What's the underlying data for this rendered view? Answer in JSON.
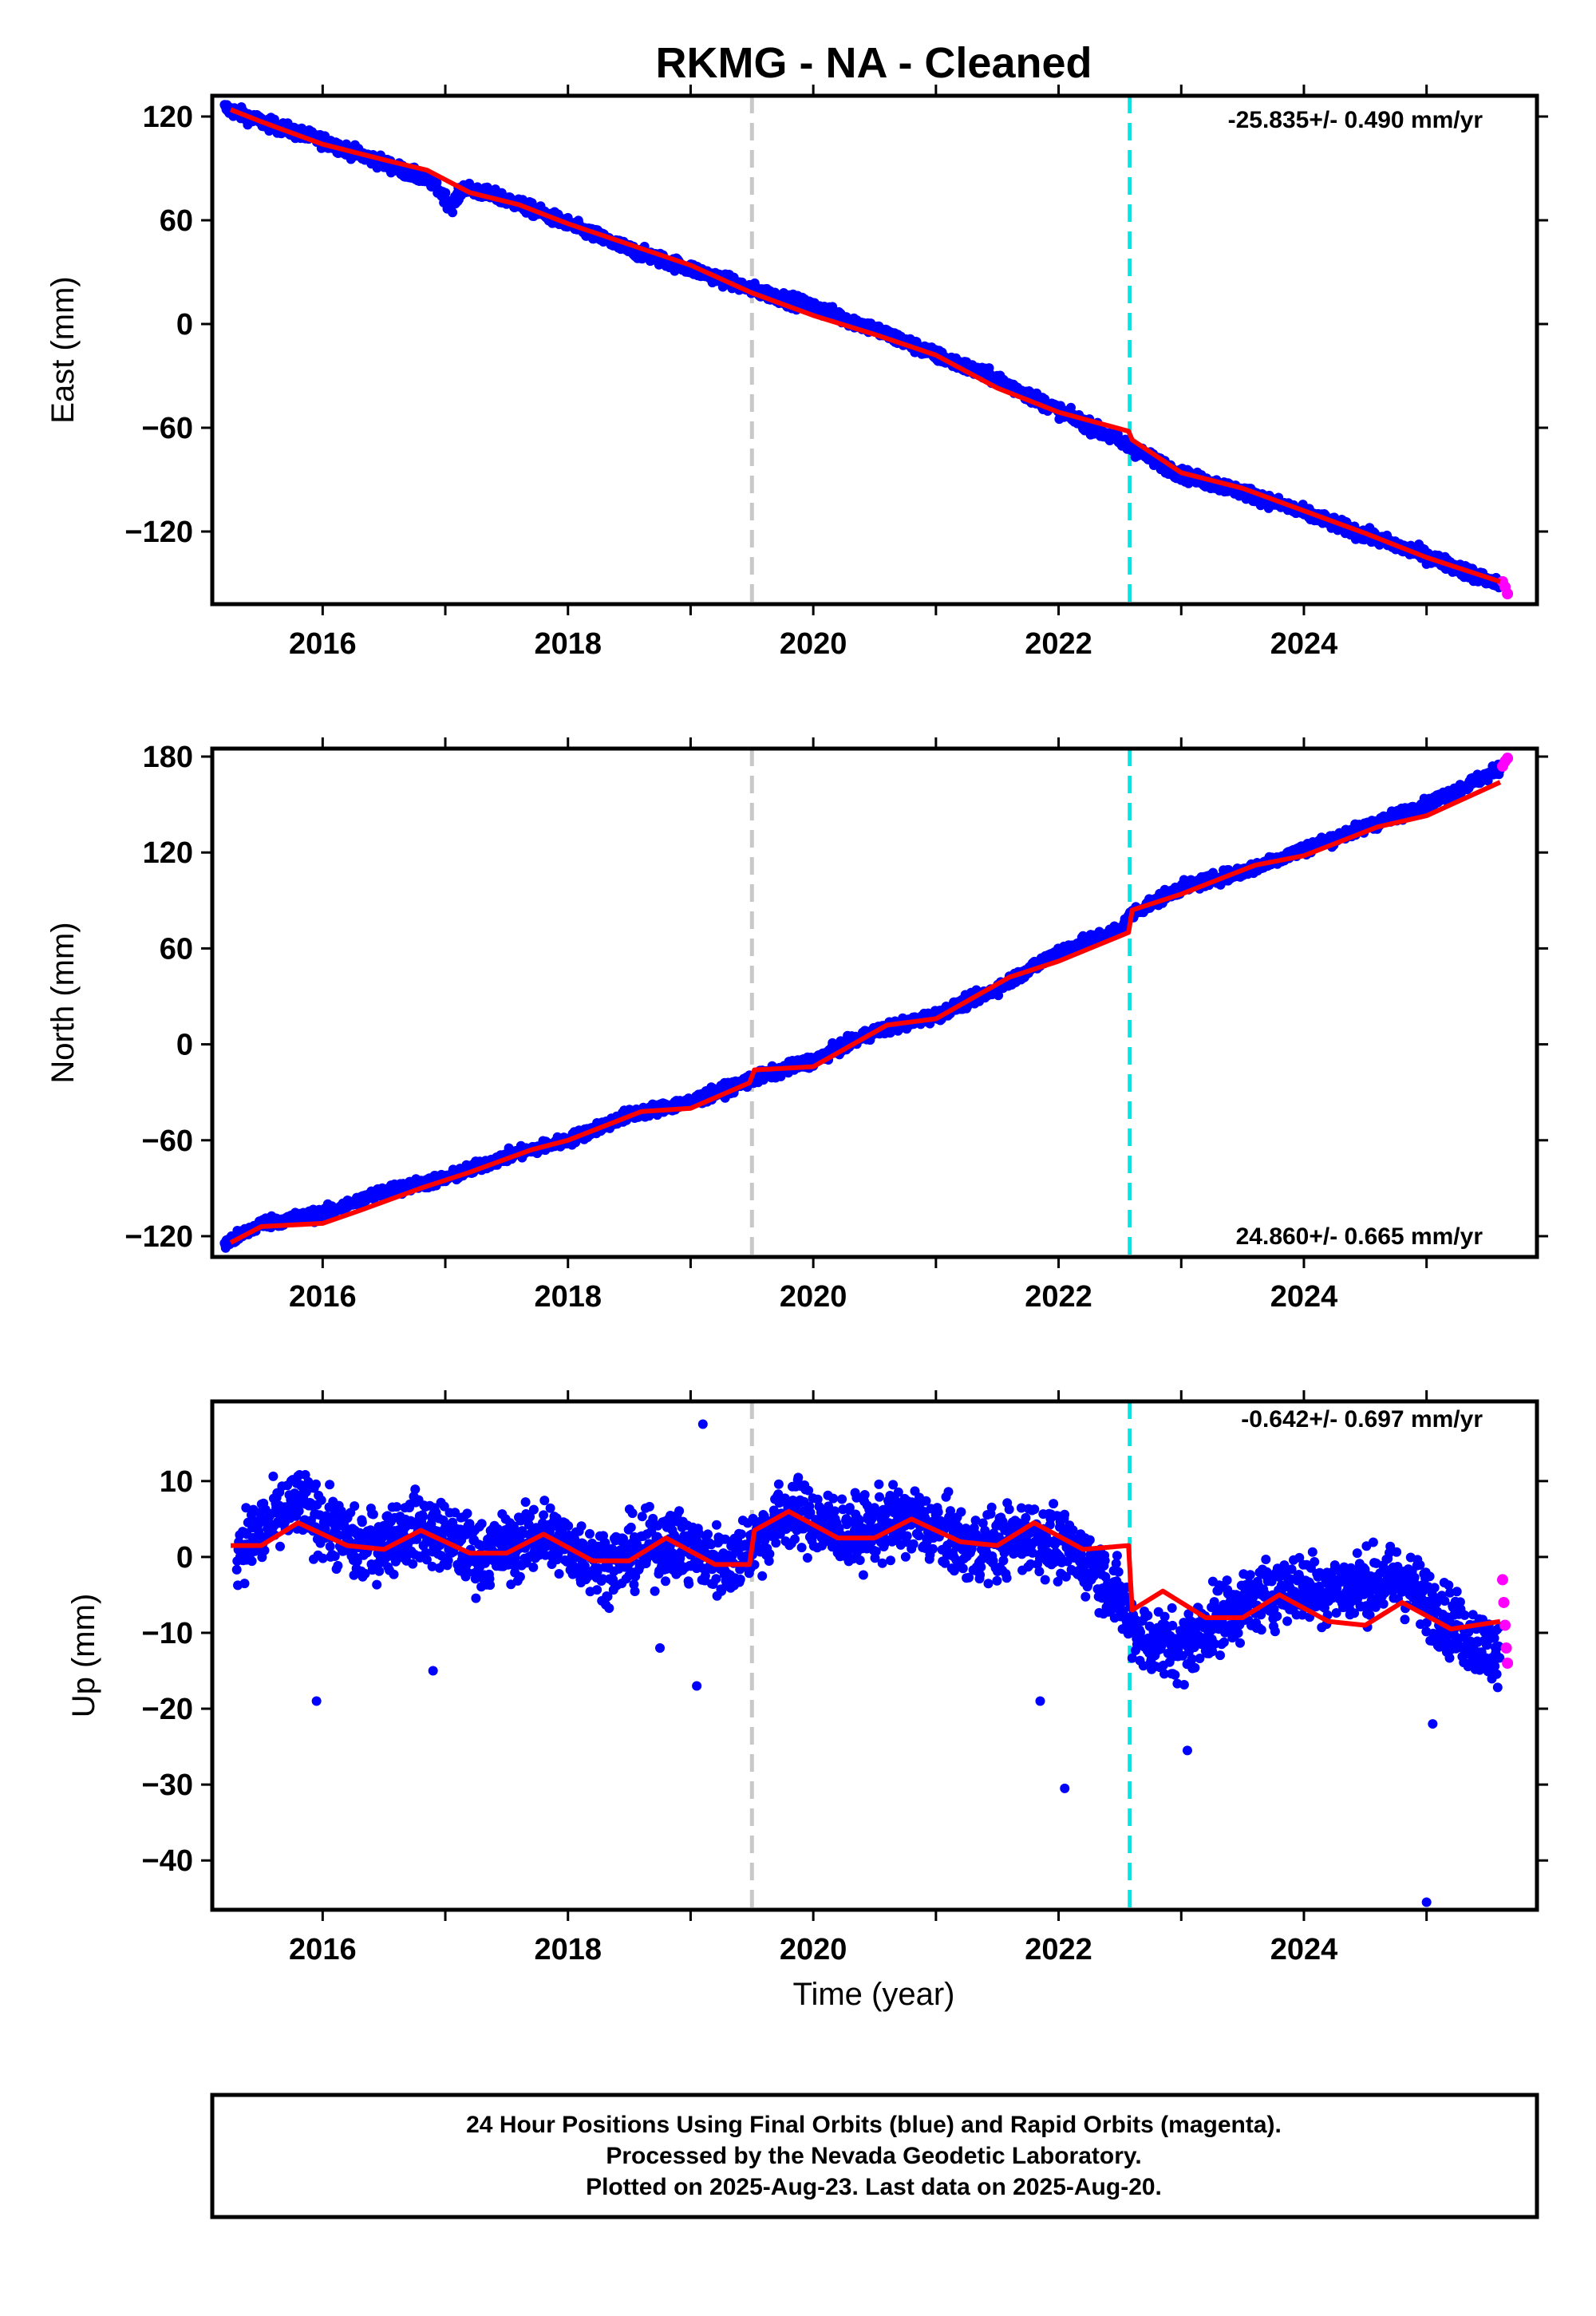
{
  "title": "RKMG  - NA - Cleaned",
  "xlabel": "Time (year)",
  "footer": [
    "24 Hour Positions Using Final Orbits (blue) and Rapid Orbits (magenta).",
    "Processed by the Nevada Geodetic Laboratory.",
    "Plotted on 2025-Aug-23. Last data on 2025-Aug-20."
  ],
  "colors": {
    "final_orbit_points": "#0000ff",
    "rapid_orbit_points": "#ff00ff",
    "model_fit": "#ff0000",
    "event_line_1": "#c8c8c8",
    "event_line_2": "#00e5e5"
  },
  "chart_data": [
    {
      "type": "scatter",
      "component": "east",
      "ylabel": "East (mm)",
      "rate_label": "-25.835+/- 0.490 mm/yr",
      "xlim": [
        2015.1,
        2025.9
      ],
      "ylim": [
        -162,
        132
      ],
      "yticks": [
        120,
        60,
        0,
        -60,
        -120
      ],
      "ytick_labels": [
        "120",
        "60",
        "0",
        "−60",
        "−120"
      ],
      "xticks": [
        2016,
        2018,
        2020,
        2022,
        2024
      ],
      "xtick_labels": [
        "2016",
        "2018",
        "2020",
        "2022",
        "2024"
      ],
      "event_lines": [
        2019.5,
        2022.58
      ],
      "series": [
        {
          "name": "Final Orbits",
          "x": [
            2015.2,
            2015.5,
            2016.0,
            2016.5,
            2016.9,
            2017.05,
            2017.15,
            2017.5,
            2018.0,
            2018.5,
            2019.0,
            2019.5,
            2020.0,
            2020.5,
            2021.0,
            2021.5,
            2022.0,
            2022.5,
            2022.6,
            2023.0,
            2023.5,
            2024.0,
            2024.5,
            2025.0,
            2025.6
          ],
          "y": [
            125,
            117,
            106,
            93,
            82,
            68,
            79,
            72,
            58,
            43,
            32,
            20,
            10,
            -3,
            -18,
            -32,
            -50,
            -68,
            -72,
            -87,
            -97,
            -109,
            -122,
            -134,
            -151
          ]
        },
        {
          "name": "Rapid Orbits",
          "x": [
            2025.62,
            2025.64,
            2025.66
          ],
          "y": [
            -149,
            -152,
            -156
          ]
        },
        {
          "name": "Model",
          "x": [
            2015.25,
            2015.5,
            2016.0,
            2016.5,
            2016.85,
            2017.2,
            2017.6,
            2018.0,
            2018.5,
            2019.0,
            2019.5,
            2020.0,
            2020.5,
            2021.0,
            2021.5,
            2022.0,
            2022.57,
            2022.6,
            2023.0,
            2023.5,
            2024.0,
            2024.5,
            2025.0,
            2025.6
          ],
          "y": [
            124,
            117,
            104,
            95,
            89,
            76,
            69,
            58,
            46,
            34,
            18,
            5,
            -6,
            -18,
            -37,
            -51,
            -62,
            -67,
            -86,
            -95,
            -108,
            -121,
            -135,
            -149
          ]
        }
      ]
    },
    {
      "type": "scatter",
      "component": "north",
      "ylabel": "North (mm)",
      "rate_label": "24.860+/- 0.665 mm/yr",
      "xlim": [
        2015.1,
        2025.9
      ],
      "ylim": [
        -133,
        185
      ],
      "yticks": [
        180,
        120,
        60,
        0,
        -60,
        -120
      ],
      "ytick_labels": [
        "180",
        "120",
        "60",
        "0",
        "−60",
        "−120"
      ],
      "xticks": [
        2016,
        2018,
        2020,
        2022,
        2024
      ],
      "xtick_labels": [
        "2016",
        "2018",
        "2020",
        "2022",
        "2024"
      ],
      "event_lines": [
        2019.5,
        2022.58
      ],
      "series": [
        {
          "name": "Final Orbits",
          "x": [
            2015.2,
            2015.5,
            2016.0,
            2016.5,
            2017.0,
            2017.5,
            2018.0,
            2018.5,
            2019.0,
            2019.5,
            2020.0,
            2020.5,
            2021.0,
            2021.5,
            2022.0,
            2022.5,
            2022.6,
            2023.0,
            2023.5,
            2024.0,
            2024.5,
            2025.0,
            2025.6
          ],
          "y": [
            -125,
            -112,
            -106,
            -92,
            -84,
            -70,
            -60,
            -44,
            -36,
            -22,
            -10,
            8,
            18,
            35,
            58,
            72,
            82,
            98,
            108,
            122,
            136,
            150,
            172
          ]
        },
        {
          "name": "Rapid Orbits",
          "x": [
            2025.62,
            2025.64,
            2025.66
          ],
          "y": [
            174,
            177,
            179
          ]
        },
        {
          "name": "Model",
          "x": [
            2015.25,
            2015.5,
            2016.0,
            2016.3,
            2016.8,
            2017.2,
            2017.7,
            2018.0,
            2018.6,
            2019.0,
            2019.48,
            2019.52,
            2020.0,
            2020.6,
            2021.0,
            2021.6,
            2022.0,
            2022.57,
            2022.6,
            2023.0,
            2023.6,
            2024.0,
            2024.6,
            2025.0,
            2025.6
          ],
          "y": [
            -124,
            -114,
            -112,
            -104,
            -90,
            -80,
            -66,
            -60,
            -42,
            -40,
            -24,
            -16,
            -14,
            12,
            16,
            42,
            52,
            70,
            84,
            94,
            112,
            118,
            136,
            143,
            164
          ]
        }
      ]
    },
    {
      "type": "scatter",
      "component": "up",
      "ylabel": "Up (mm)",
      "rate_label": "-0.642+/- 0.697 mm/yr",
      "xlim": [
        2015.1,
        2025.9
      ],
      "ylim": [
        -46.5,
        20.5
      ],
      "yticks": [
        10,
        0,
        -10,
        -20,
        -30,
        -40
      ],
      "ytick_labels": [
        "10",
        "0",
        "−10",
        "−20",
        "−30",
        "−40"
      ],
      "xticks": [
        2016,
        2018,
        2020,
        2022,
        2024
      ],
      "xtick_labels": [
        "2016",
        "2018",
        "2020",
        "2022",
        "2024"
      ],
      "event_lines": [
        2019.5,
        2022.58
      ],
      "outliers": {
        "x": [
          2015.95,
          2016.9,
          2018.75,
          2019.05,
          2019.1,
          2021.85,
          2022.05,
          2023.05,
          2025.0,
          2025.05
        ],
        "y": [
          -19,
          -15,
          -12,
          -17,
          17.5,
          -19,
          -30.5,
          -25.5,
          -45.5,
          -22
        ]
      },
      "series": [
        {
          "name": "Final Orbits",
          "x": [
            2015.3,
            2015.8,
            2016.3,
            2016.8,
            2017.3,
            2017.8,
            2018.3,
            2018.8,
            2019.3,
            2019.8,
            2020.3,
            2020.8,
            2021.3,
            2021.8,
            2022.3,
            2022.7,
            2023.0,
            2023.3,
            2023.8,
            2024.3,
            2024.8,
            2025.3,
            2025.6
          ],
          "y": [
            1,
            7,
            1,
            4,
            0,
            3,
            -1,
            2,
            -1,
            6,
            3,
            5,
            1,
            3,
            -1,
            -11,
            -12,
            -8,
            -4,
            -4,
            -3,
            -10,
            -13
          ]
        },
        {
          "name": "Rapid Orbits",
          "x": [
            2025.62,
            2025.63,
            2025.64,
            2025.65,
            2025.66
          ],
          "y": [
            -3,
            -6,
            -9,
            -12,
            -14
          ]
        },
        {
          "name": "Model",
          "x": [
            2015.25,
            2015.5,
            2015.8,
            2016.2,
            2016.5,
            2016.8,
            2017.2,
            2017.5,
            2017.8,
            2018.2,
            2018.5,
            2018.8,
            2019.2,
            2019.48,
            2019.52,
            2019.8,
            2020.2,
            2020.5,
            2020.8,
            2021.2,
            2021.5,
            2021.8,
            2022.2,
            2022.57,
            2022.6,
            2022.85,
            2023.2,
            2023.5,
            2023.8,
            2024.2,
            2024.5,
            2024.8,
            2025.2,
            2025.6
          ],
          "y": [
            1.5,
            1.5,
            4.5,
            1.5,
            1,
            3.5,
            0.5,
            0.5,
            3,
            -0.5,
            -0.5,
            2.5,
            -1,
            -1,
            3.5,
            6,
            2.5,
            2.5,
            5,
            2,
            1.5,
            4.5,
            1,
            1.5,
            -7,
            -4.5,
            -8,
            -8,
            -5,
            -8.5,
            -9,
            -6,
            -9.5,
            -8.5
          ]
        }
      ]
    }
  ]
}
